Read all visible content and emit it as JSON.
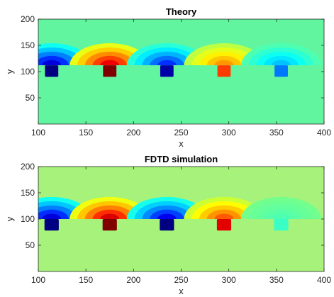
{
  "chart_data": [
    {
      "type": "heatmap",
      "title": "Theory",
      "xlabel": "x",
      "ylabel": "y",
      "xlim": [
        100,
        400
      ],
      "ylim": [
        0,
        200
      ],
      "xticks": [
        100,
        150,
        200,
        250,
        300,
        350,
        400
      ],
      "yticks": [
        50,
        100,
        150,
        200
      ],
      "grid": false,
      "background_color": "#62f5a0",
      "boundary_y": 112,
      "sources": [
        {
          "x": 114,
          "w": 14,
          "y_bottom": 90,
          "y_top": 112,
          "sign": -1,
          "strength": 1.0
        },
        {
          "x": 175,
          "w": 14,
          "y_bottom": 90,
          "y_top": 112,
          "sign": 1,
          "strength": 0.95
        },
        {
          "x": 235,
          "w": 14,
          "y_bottom": 90,
          "y_top": 112,
          "sign": -1,
          "strength": 0.8
        },
        {
          "x": 295,
          "w": 14,
          "y_bottom": 90,
          "y_top": 112,
          "sign": 1,
          "strength": 0.55
        },
        {
          "x": 355,
          "w": 14,
          "y_bottom": 90,
          "y_top": 112,
          "sign": -1,
          "strength": 0.45
        }
      ]
    },
    {
      "type": "heatmap",
      "title": "FDTD simulation",
      "xlabel": "x",
      "ylabel": "y",
      "xlim": [
        100,
        400
      ],
      "ylim": [
        0,
        200
      ],
      "xticks": [
        100,
        150,
        200,
        250,
        300,
        350,
        400
      ],
      "yticks": [
        50,
        100,
        150,
        200
      ],
      "grid": false,
      "background_color": "#a6f27a",
      "boundary_y": 100,
      "sources": [
        {
          "x": 114,
          "w": 15,
          "y_bottom": 78,
          "y_top": 100,
          "sign": -1,
          "strength": 1.0
        },
        {
          "x": 175,
          "w": 15,
          "y_bottom": 78,
          "y_top": 100,
          "sign": 1,
          "strength": 1.0
        },
        {
          "x": 235,
          "w": 15,
          "y_bottom": 78,
          "y_top": 100,
          "sign": -1,
          "strength": 0.95
        },
        {
          "x": 295,
          "w": 15,
          "y_bottom": 78,
          "y_top": 100,
          "sign": 1,
          "strength": 0.7
        },
        {
          "x": 355,
          "w": 15,
          "y_bottom": 78,
          "y_top": 100,
          "sign": -1,
          "strength": 0.12
        }
      ]
    }
  ]
}
